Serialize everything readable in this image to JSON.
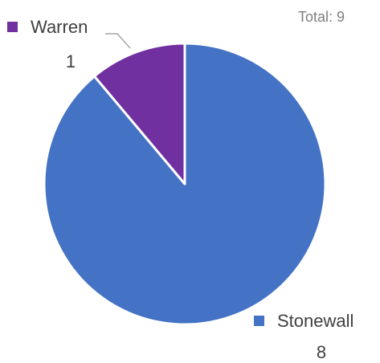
{
  "chart_data": {
    "type": "pie",
    "annotation": "Total: 9",
    "categories": [
      "Stonewall",
      "Warren"
    ],
    "values": [
      8,
      1
    ],
    "colors": [
      "#4472c4",
      "#7030a0"
    ]
  }
}
